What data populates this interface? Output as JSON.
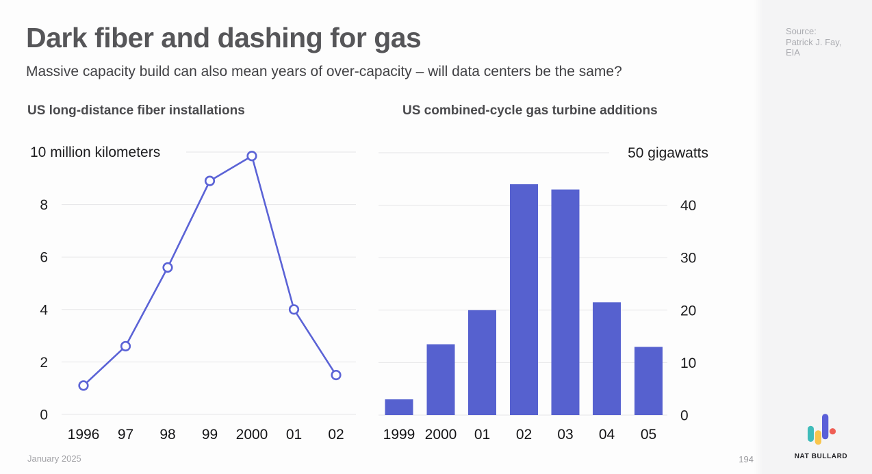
{
  "header": {
    "title": "Dark fiber and dashing for gas",
    "subtitle": "Massive capacity build can also mean years of over-capacity – will data centers be the same?"
  },
  "source": {
    "lines": [
      "Source:",
      "Patrick J. Fay,",
      "EIA"
    ]
  },
  "footer": {
    "date": "January 2025",
    "page": "194"
  },
  "logo": {
    "text": "NAT BULLARD",
    "teal": "#3fbcba",
    "yellow": "#f9c54c",
    "purple": "#5a5fd8",
    "red": "#ef5e54"
  },
  "chart_data": [
    {
      "type": "line",
      "title": "US long-distance fiber installations",
      "unit_label": "10 million kilometers",
      "categories": [
        "1996",
        "97",
        "98",
        "99",
        "2000",
        "01",
        "02"
      ],
      "values": [
        1.1,
        2.6,
        5.6,
        8.9,
        9.85,
        4.0,
        1.5
      ],
      "ylim": [
        0,
        10
      ],
      "yticks": [
        0,
        2,
        4,
        6,
        8
      ],
      "top_value": 10,
      "color": "#5b63d6",
      "marker": "open-circle",
      "grid": true,
      "ylabel_side": "left"
    },
    {
      "type": "bar",
      "title": "US combined-cycle gas turbine additions",
      "unit_label": "50 gigawatts",
      "categories": [
        "1999",
        "2000",
        "01",
        "02",
        "03",
        "04",
        "05"
      ],
      "values": [
        3,
        13.5,
        20,
        44,
        43,
        21.5,
        13
      ],
      "ylim": [
        0,
        50
      ],
      "yticks": [
        0,
        10,
        20,
        30,
        40
      ],
      "top_value": 50,
      "color": "#5661cf",
      "grid": true,
      "ylabel_side": "right"
    }
  ]
}
